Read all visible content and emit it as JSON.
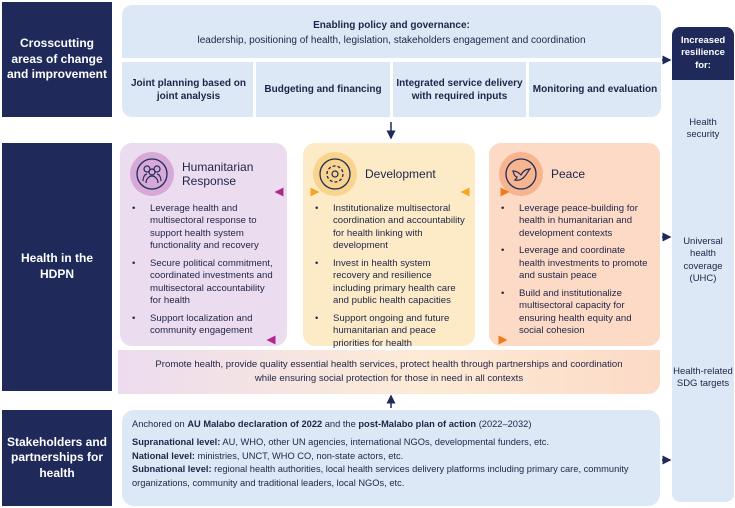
{
  "left_labels": {
    "crosscutting": "Crosscutting areas of change and improvement",
    "hdpn": "Health in the HDPN",
    "stakeholders": "Stakeholders and partnerships for health"
  },
  "governance": {
    "title": "Enabling policy and governance:",
    "text": "leadership, positioning of health, legislation, stakeholders engagement and coordination",
    "items": [
      "Joint planning based on joint analysis",
      "Budgeting and financing",
      "Integrated service delivery with required inputs",
      "Monitoring and evaluation"
    ]
  },
  "pillars": [
    {
      "title": "Humanitarian Response",
      "icon": "people-group-icon",
      "color": "#ecdcef",
      "bullets": [
        "Leverage health and multisectoral response to support health system functionality and recovery",
        "Secure political commitment, coordinated investments and multisectoral accountability for health",
        "Support localization and community engagement"
      ]
    },
    {
      "title": "Development",
      "icon": "gear-icon",
      "color": "#fdebc8",
      "bullets": [
        "Institutionalize multisectoral coordination and accountability for health linking with development",
        "Invest in health system recovery and resilience including primary health care and public health capacities",
        "Support ongoing and future humanitarian and peace priorities for health"
      ]
    },
    {
      "title": "Peace",
      "icon": "dove-icon",
      "color": "#fcdac6",
      "bullets": [
        "Leverage peace-building for health in humanitarian and development contexts",
        "Leverage and coordinate health investments to promote and sustain peace",
        "Build and institutionalize multisectoral capacity for ensuring health equity and social cohesion"
      ]
    }
  ],
  "promote": "Promote health, provide quality essential health services, protect health through partnerships and coordination while ensuring social protection for those in need in all contexts",
  "stakeholders": {
    "anchor_pre": "Anchored on ",
    "anchor_b1": "AU Malabo declaration of 2022",
    "anchor_mid": " and the ",
    "anchor_b2": "post-Malabo plan of action",
    "anchor_post": " (2022–2032)",
    "levels": [
      {
        "label": "Supranational level:",
        "text": " AU, WHO, other UN agencies, international NGOs, developmental funders, etc."
      },
      {
        "label": "National level:",
        "text": " ministries, UNCT, WHO CO, non-state actors, etc."
      },
      {
        "label": "Subnational level:",
        "text": " regional health authorities, local health services delivery platforms including primary care, community organizations, community and traditional leaders, local NGOs, etc."
      }
    ]
  },
  "resilience": {
    "header": "Increased resilience for:",
    "items": [
      "Health security",
      "Universal health coverage (UHC)",
      "Health-related SDG targets"
    ]
  },
  "colors": {
    "navy": "#1f2a5a",
    "light_blue": "#dde8f7",
    "magenta": "#b0278f",
    "orange": "#f07a1a",
    "amber": "#f5a623"
  }
}
